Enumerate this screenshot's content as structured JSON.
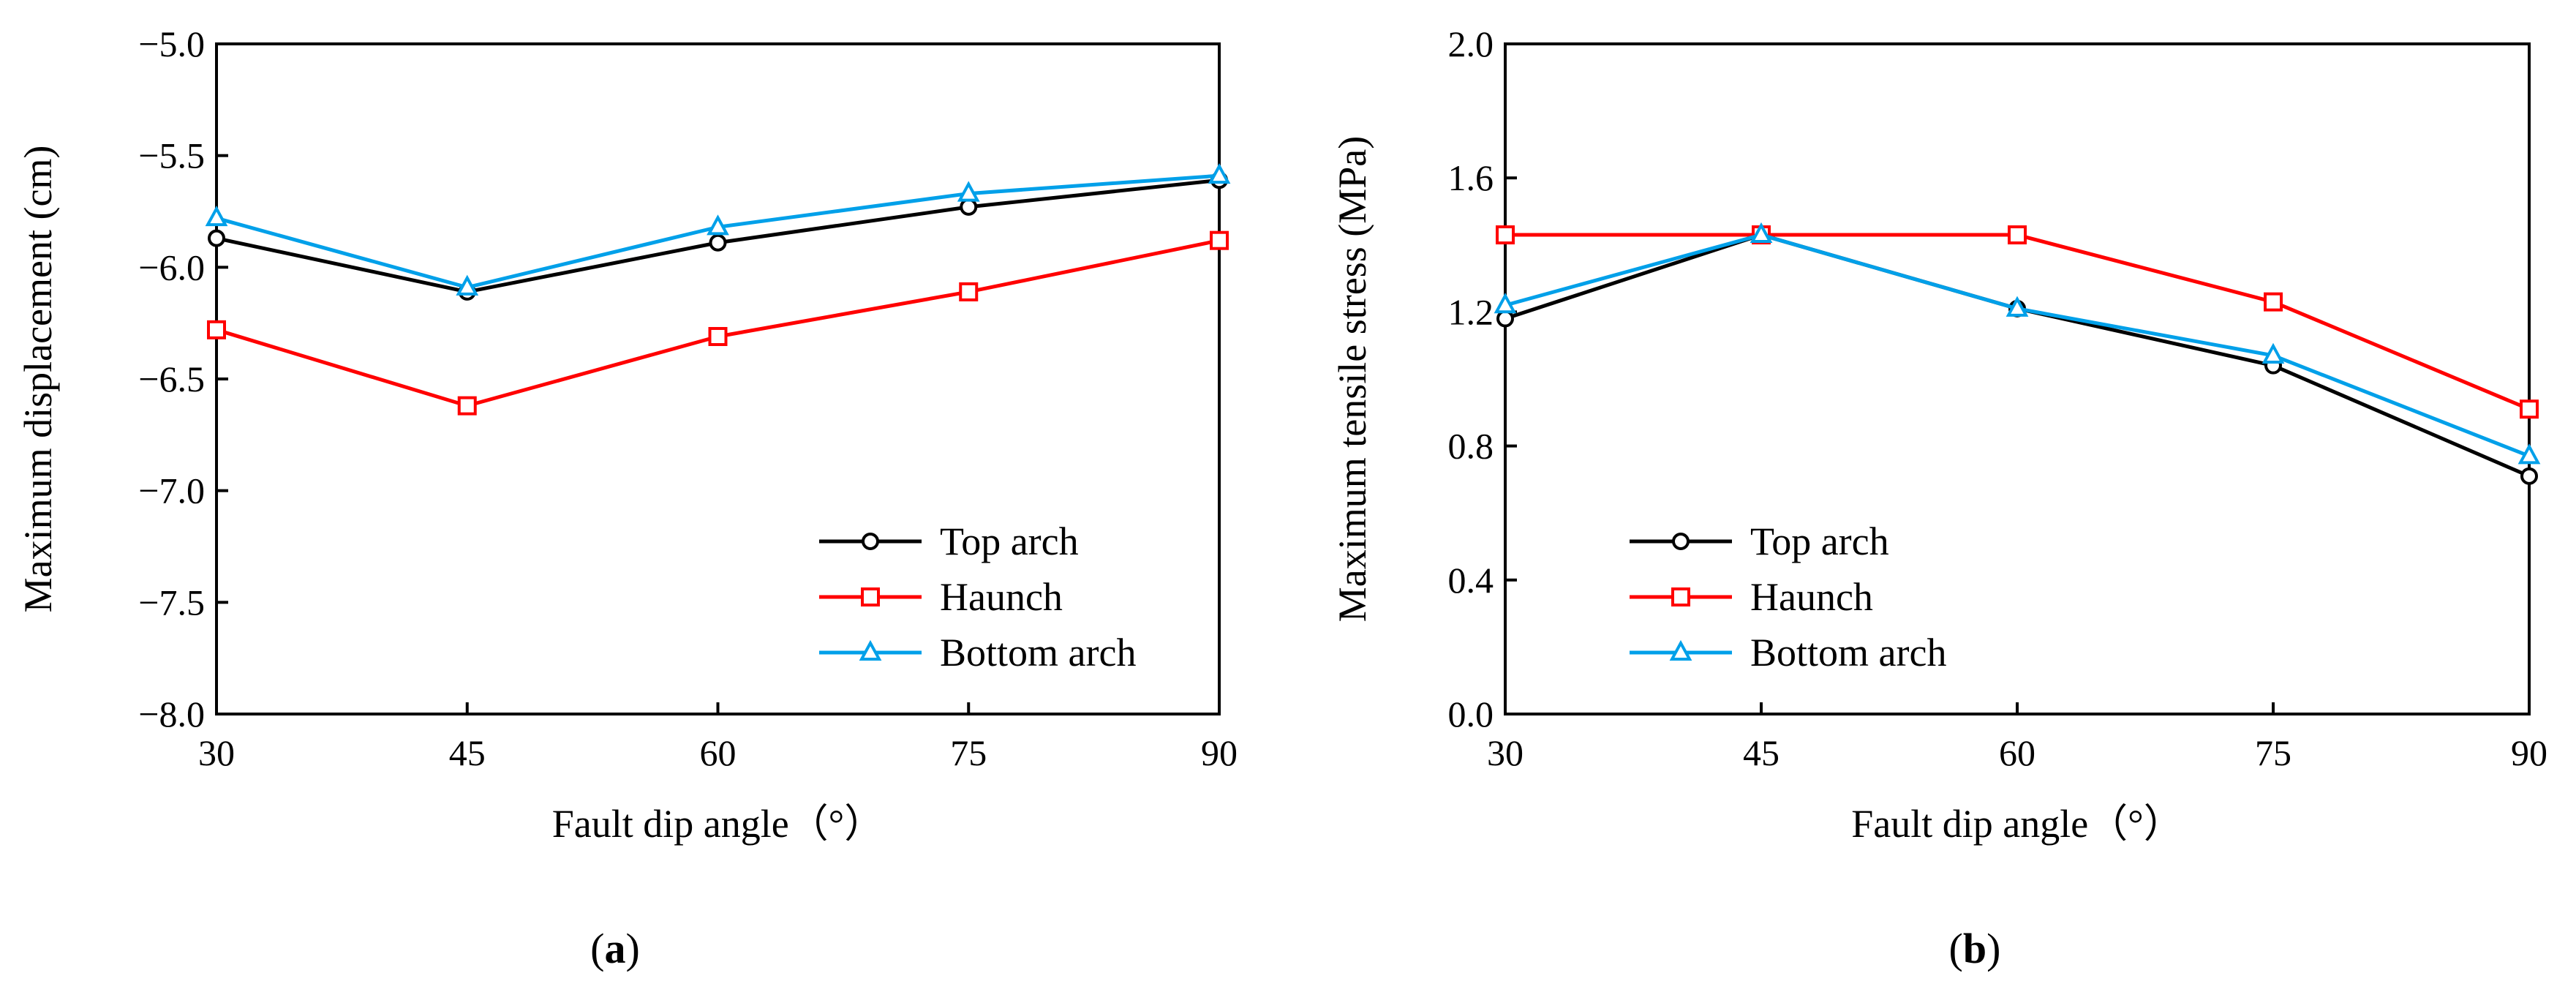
{
  "chart_data": [
    {
      "type": "line",
      "panel_label": "(a)",
      "panel_letter": "a",
      "xlabel": "Fault dip angle（°）",
      "ylabel": "Maximum displacement (cm)",
      "x": [
        30,
        45,
        60,
        75,
        90
      ],
      "xlim": [
        30,
        90
      ],
      "ylim": [
        -8.0,
        -5.0
      ],
      "xticks": [
        "30",
        "45",
        "60",
        "75",
        "90"
      ],
      "yticks": [
        {
          "value": -8.0,
          "label": "−8.0"
        },
        {
          "value": -7.5,
          "label": "−7.5"
        },
        {
          "value": -7.0,
          "label": "−7.0"
        },
        {
          "value": -6.5,
          "label": "−6.5"
        },
        {
          "value": -6.0,
          "label": "−6.0"
        },
        {
          "value": -5.5,
          "label": "−5.5"
        },
        {
          "value": -5.0,
          "label": "−5.0"
        }
      ],
      "grid": false,
      "legend_position": "bottom-right",
      "series": [
        {
          "name": "Top arch",
          "color": "#000000",
          "marker": "circle",
          "values": [
            -5.87,
            -6.11,
            -5.89,
            -5.73,
            -5.61
          ]
        },
        {
          "name": "Haunch",
          "color": "#ff0000",
          "marker": "square",
          "values": [
            -6.28,
            -6.62,
            -6.31,
            -6.11,
            -5.88
          ]
        },
        {
          "name": "Bottom arch",
          "color": "#00a0e9",
          "marker": "triangle",
          "values": [
            -5.78,
            -6.09,
            -5.82,
            -5.67,
            -5.59
          ]
        }
      ]
    },
    {
      "type": "line",
      "panel_label": "(b)",
      "panel_letter": "b",
      "xlabel": "Fault dip angle（°）",
      "ylabel": "Maximum tensile stress (MPa)",
      "x": [
        30,
        45,
        60,
        75,
        90
      ],
      "xlim": [
        30,
        90
      ],
      "ylim": [
        0.0,
        2.0
      ],
      "xticks": [
        "30",
        "45",
        "60",
        "75",
        "90"
      ],
      "yticks": [
        {
          "value": 0.0,
          "label": "0.0"
        },
        {
          "value": 0.4,
          "label": "0.4"
        },
        {
          "value": 0.8,
          "label": "0.8"
        },
        {
          "value": 1.2,
          "label": "1.2"
        },
        {
          "value": 1.6,
          "label": "1.6"
        },
        {
          "value": 2.0,
          "label": "2.0"
        }
      ],
      "grid": false,
      "legend_position": "bottom-left",
      "series": [
        {
          "name": "Top arch",
          "color": "#000000",
          "marker": "circle",
          "values": [
            1.18,
            1.43,
            1.21,
            1.04,
            0.71
          ]
        },
        {
          "name": "Haunch",
          "color": "#ff0000",
          "marker": "square",
          "values": [
            1.43,
            1.43,
            1.43,
            1.23,
            0.91
          ]
        },
        {
          "name": "Bottom arch",
          "color": "#00a0e9",
          "marker": "triangle",
          "values": [
            1.22,
            1.43,
            1.21,
            1.07,
            0.77
          ]
        }
      ]
    }
  ]
}
